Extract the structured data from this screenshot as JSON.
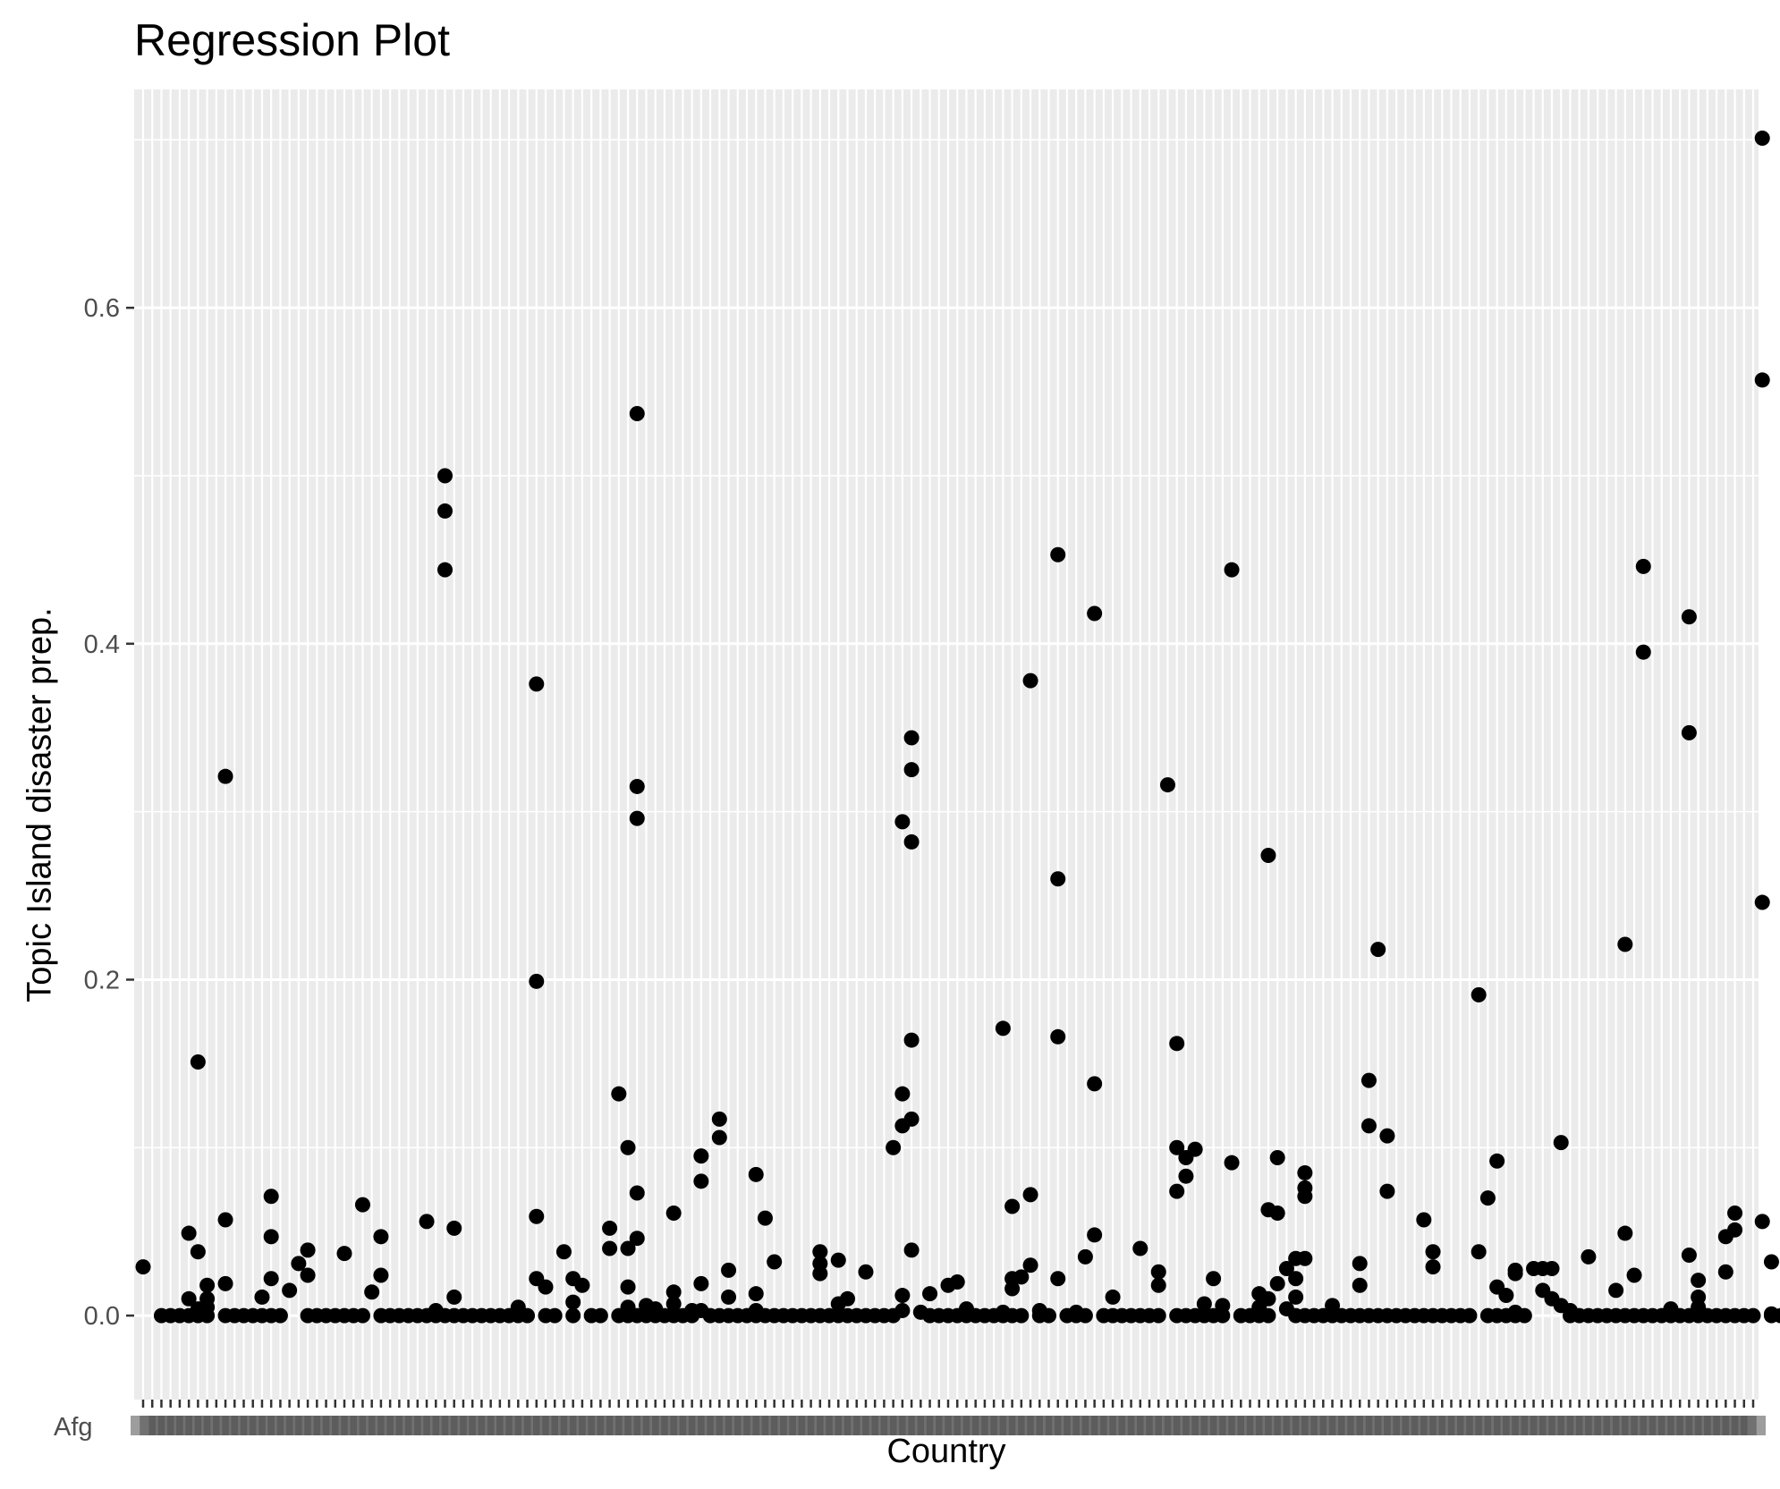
{
  "chart_data": {
    "type": "scatter",
    "title": "Regression Plot",
    "xlabel": "Country",
    "ylabel": "Topic Island disaster prep.",
    "x_axis": {
      "kind": "categorical",
      "first_label_visible": "Afg",
      "n_categories": 177,
      "tick_labels_overlapping": true
    },
    "y_ticks": [
      0.0,
      0.2,
      0.4,
      0.6
    ],
    "y_tick_labels": [
      "0.0",
      "0.2",
      "0.4",
      "0.6"
    ],
    "ylim": [
      -0.05,
      0.73
    ],
    "grid": true,
    "legend": "none",
    "colors": {
      "panel": "#ebebeb",
      "grid": "#ffffff",
      "points": "#000000",
      "text": "#4d4d4d"
    },
    "points": [
      [
        0,
        0.029
      ],
      [
        2,
        0
      ],
      [
        3,
        0
      ],
      [
        4,
        0
      ],
      [
        5,
        0
      ],
      [
        6,
        0
      ],
      [
        5,
        0.049
      ],
      [
        5,
        0.01
      ],
      [
        6,
        0.004
      ],
      [
        6,
        0.038
      ],
      [
        6,
        0.151
      ],
      [
        7,
        0.018
      ],
      [
        7,
        0.01
      ],
      [
        7,
        0.005
      ],
      [
        7,
        0
      ],
      [
        9,
        0.321
      ],
      [
        9,
        0.057
      ],
      [
        9,
        0.019
      ],
      [
        9,
        0
      ],
      [
        10,
        0
      ],
      [
        11,
        0
      ],
      [
        12,
        0
      ],
      [
        13,
        0
      ],
      [
        14,
        0
      ],
      [
        13,
        0.011
      ],
      [
        14,
        0.071
      ],
      [
        14,
        0.047
      ],
      [
        14,
        0.022
      ],
      [
        15,
        0
      ],
      [
        16,
        0.015
      ],
      [
        17,
        0.031
      ],
      [
        18,
        0.039
      ],
      [
        18,
        0.024
      ],
      [
        18,
        0
      ],
      [
        19,
        0
      ],
      [
        20,
        0
      ],
      [
        21,
        0
      ],
      [
        22,
        0.037
      ],
      [
        22,
        0
      ],
      [
        23,
        0
      ],
      [
        24,
        0
      ],
      [
        24,
        0.066
      ],
      [
        25,
        0.014
      ],
      [
        26,
        0.047
      ],
      [
        26,
        0.024
      ],
      [
        26,
        0
      ],
      [
        27,
        0
      ],
      [
        28,
        0
      ],
      [
        29,
        0
      ],
      [
        30,
        0
      ],
      [
        31,
        0
      ],
      [
        31,
        0.056
      ],
      [
        32,
        0.003
      ],
      [
        32,
        0
      ],
      [
        33,
        0.5
      ],
      [
        33,
        0.479
      ],
      [
        33,
        0.444
      ],
      [
        33,
        0
      ],
      [
        34,
        0.052
      ],
      [
        34,
        0.011
      ],
      [
        34,
        0
      ],
      [
        35,
        0
      ],
      [
        36,
        0
      ],
      [
        37,
        0
      ],
      [
        38,
        0
      ],
      [
        39,
        0
      ],
      [
        40,
        0
      ],
      [
        41,
        0
      ],
      [
        42,
        0
      ],
      [
        41,
        0.005
      ],
      [
        43,
        0.376
      ],
      [
        43,
        0.199
      ],
      [
        43,
        0.059
      ],
      [
        43,
        0.022
      ],
      [
        44,
        0.017
      ],
      [
        44,
        0
      ],
      [
        45,
        0
      ],
      [
        46,
        0.038
      ],
      [
        47,
        0.022
      ],
      [
        47,
        0.008
      ],
      [
        47,
        0
      ],
      [
        48,
        0.018
      ],
      [
        49,
        0
      ],
      [
        50,
        0
      ],
      [
        51,
        0.052
      ],
      [
        51,
        0.04
      ],
      [
        52,
        0.132
      ],
      [
        52,
        0
      ],
      [
        53,
        0.1
      ],
      [
        53,
        0.04
      ],
      [
        53,
        0.017
      ],
      [
        53,
        0.005
      ],
      [
        53,
        0
      ],
      [
        54,
        0.537
      ],
      [
        54,
        0.315
      ],
      [
        54,
        0.296
      ],
      [
        54,
        0.073
      ],
      [
        54,
        0.046
      ],
      [
        54,
        0
      ],
      [
        55,
        0.006
      ],
      [
        55,
        0
      ],
      [
        56,
        0.004
      ],
      [
        56,
        0
      ],
      [
        57,
        0
      ],
      [
        58,
        0.061
      ],
      [
        58,
        0.014
      ],
      [
        58,
        0.007
      ],
      [
        58,
        0
      ],
      [
        59,
        0
      ],
      [
        60,
        0.003
      ],
      [
        60,
        0
      ],
      [
        61,
        0.095
      ],
      [
        61,
        0.08
      ],
      [
        61,
        0.019
      ],
      [
        61,
        0.003
      ],
      [
        62,
        0
      ],
      [
        63,
        0.117
      ],
      [
        63,
        0.106
      ],
      [
        63,
        0
      ],
      [
        64,
        0.027
      ],
      [
        64,
        0.011
      ],
      [
        64,
        0
      ],
      [
        65,
        0
      ],
      [
        66,
        0
      ],
      [
        67,
        0.084
      ],
      [
        67,
        0.013
      ],
      [
        67,
        0.003
      ],
      [
        67,
        0
      ],
      [
        68,
        0.058
      ],
      [
        68,
        0
      ],
      [
        69,
        0.032
      ],
      [
        69,
        0
      ],
      [
        70,
        0
      ],
      [
        71,
        0
      ],
      [
        72,
        0
      ],
      [
        73,
        0
      ],
      [
        74,
        0.038
      ],
      [
        74,
        0.031
      ],
      [
        74,
        0.025
      ],
      [
        74,
        0
      ],
      [
        75,
        0
      ],
      [
        76,
        0.033
      ],
      [
        76,
        0.007
      ],
      [
        76,
        0
      ],
      [
        77,
        0.01
      ],
      [
        77,
        0
      ],
      [
        78,
        0
      ],
      [
        79,
        0.026
      ],
      [
        79,
        0
      ],
      [
        80,
        0
      ],
      [
        81,
        0
      ],
      [
        82,
        0.1
      ],
      [
        82,
        0
      ],
      [
        83,
        0.294
      ],
      [
        83,
        0.132
      ],
      [
        83,
        0.113
      ],
      [
        83,
        0.012
      ],
      [
        83,
        0.003
      ],
      [
        84,
        0.344
      ],
      [
        84,
        0.325
      ],
      [
        84,
        0.282
      ],
      [
        84,
        0.164
      ],
      [
        84,
        0.117
      ],
      [
        84,
        0.039
      ],
      [
        85,
        0.002
      ],
      [
        86,
        0.013
      ],
      [
        86,
        0
      ],
      [
        87,
        0
      ],
      [
        88,
        0.018
      ],
      [
        88,
        0
      ],
      [
        89,
        0.02
      ],
      [
        89,
        0
      ],
      [
        90,
        0.004
      ],
      [
        90,
        0
      ],
      [
        91,
        0
      ],
      [
        92,
        0
      ],
      [
        93,
        0
      ],
      [
        94,
        0.171
      ],
      [
        94,
        0.002
      ],
      [
        94,
        0
      ],
      [
        95,
        0.065
      ],
      [
        95,
        0.022
      ],
      [
        95,
        0.016
      ],
      [
        95,
        0
      ],
      [
        96,
        0.023
      ],
      [
        96,
        0
      ],
      [
        97,
        0.378
      ],
      [
        97,
        0.072
      ],
      [
        97,
        0.03
      ],
      [
        98,
        0.003
      ],
      [
        98,
        0
      ],
      [
        99,
        0
      ],
      [
        100,
        0.453
      ],
      [
        100,
        0.26
      ],
      [
        100,
        0.166
      ],
      [
        100,
        0.022
      ],
      [
        101,
        0
      ],
      [
        102,
        0.002
      ],
      [
        102,
        0
      ],
      [
        103,
        0
      ],
      [
        103,
        0.035
      ],
      [
        104,
        0.418
      ],
      [
        104,
        0.138
      ],
      [
        104,
        0.048
      ],
      [
        105,
        0
      ],
      [
        106,
        0.011
      ],
      [
        106,
        0
      ],
      [
        107,
        0
      ],
      [
        108,
        0
      ],
      [
        109,
        0
      ],
      [
        109,
        0.04
      ],
      [
        110,
        0
      ],
      [
        111,
        0
      ],
      [
        111,
        0.026
      ],
      [
        111,
        0.018
      ],
      [
        112,
        0.316
      ],
      [
        113,
        0.162
      ],
      [
        113,
        0.1
      ],
      [
        113,
        0.074
      ],
      [
        113,
        0
      ],
      [
        114,
        0.094
      ],
      [
        114,
        0.083
      ],
      [
        114,
        0
      ],
      [
        115,
        0.099
      ],
      [
        115,
        0
      ],
      [
        116,
        0.007
      ],
      [
        116,
        0
      ],
      [
        117,
        0.022
      ],
      [
        117,
        0
      ],
      [
        118,
        0.006
      ],
      [
        118,
        0
      ],
      [
        119,
        0.444
      ],
      [
        119,
        0.091
      ],
      [
        120,
        0
      ],
      [
        121,
        0
      ],
      [
        122,
        0.013
      ],
      [
        122,
        0.005
      ],
      [
        122,
        0
      ],
      [
        123,
        0.274
      ],
      [
        123,
        0.063
      ],
      [
        123,
        0.01
      ],
      [
        123,
        0
      ],
      [
        124,
        0.094
      ],
      [
        124,
        0.061
      ],
      [
        124,
        0.019
      ],
      [
        125,
        0.028
      ],
      [
        125,
        0.004
      ],
      [
        126,
        0.034
      ],
      [
        126,
        0.022
      ],
      [
        126,
        0.011
      ],
      [
        126,
        0
      ],
      [
        127,
        0.085
      ],
      [
        127,
        0.076
      ],
      [
        127,
        0.071
      ],
      [
        127,
        0.034
      ],
      [
        127,
        0
      ],
      [
        128,
        0
      ],
      [
        129,
        0
      ],
      [
        130,
        0.006
      ],
      [
        130,
        0
      ],
      [
        131,
        0
      ],
      [
        132,
        0
      ],
      [
        133,
        0.031
      ],
      [
        133,
        0.018
      ],
      [
        133,
        0
      ],
      [
        134,
        0.14
      ],
      [
        134,
        0.113
      ],
      [
        134,
        0
      ],
      [
        135,
        0.218
      ],
      [
        135,
        0
      ],
      [
        136,
        0.107
      ],
      [
        136,
        0.074
      ],
      [
        136,
        0
      ],
      [
        137,
        0
      ],
      [
        138,
        0
      ],
      [
        139,
        0
      ],
      [
        140,
        0.057
      ],
      [
        140,
        0
      ],
      [
        141,
        0.038
      ],
      [
        141,
        0.029
      ],
      [
        141,
        0
      ],
      [
        142,
        0
      ],
      [
        143,
        0
      ],
      [
        144,
        0
      ],
      [
        145,
        0
      ],
      [
        146,
        0.191
      ],
      [
        146,
        0.038
      ],
      [
        147,
        0.07
      ],
      [
        147,
        0
      ],
      [
        148,
        0.092
      ],
      [
        148,
        0.017
      ],
      [
        148,
        0
      ],
      [
        149,
        0.012
      ],
      [
        149,
        0
      ],
      [
        150,
        0.027
      ],
      [
        150,
        0.025
      ],
      [
        150,
        0.002
      ],
      [
        150,
        0
      ],
      [
        151,
        0
      ],
      [
        152,
        0.028
      ],
      [
        153,
        0.028
      ],
      [
        153,
        0.015
      ],
      [
        154,
        0.028
      ],
      [
        154,
        0.01
      ],
      [
        155,
        0.103
      ],
      [
        155,
        0.006
      ],
      [
        156,
        0.003
      ],
      [
        156,
        0
      ],
      [
        157,
        0
      ],
      [
        158,
        0.035
      ],
      [
        158,
        0
      ],
      [
        159,
        0
      ],
      [
        160,
        0
      ],
      [
        161,
        0.015
      ],
      [
        161,
        0
      ],
      [
        162,
        0.221
      ],
      [
        162,
        0.049
      ],
      [
        162,
        0
      ],
      [
        163,
        0.024
      ],
      [
        163,
        0
      ],
      [
        164,
        0.446
      ],
      [
        164,
        0.395
      ],
      [
        164,
        0
      ],
      [
        165,
        0
      ],
      [
        166,
        0
      ],
      [
        167,
        0.004
      ],
      [
        167,
        0
      ],
      [
        168,
        0
      ],
      [
        169,
        0.416
      ],
      [
        169,
        0.347
      ],
      [
        169,
        0.036
      ],
      [
        169,
        0
      ],
      [
        170,
        0.021
      ],
      [
        170,
        0.011
      ],
      [
        170,
        0.005
      ],
      [
        170,
        0
      ],
      [
        171,
        0
      ],
      [
        172,
        0
      ],
      [
        173,
        0.047
      ],
      [
        173,
        0.026
      ],
      [
        173,
        0
      ],
      [
        174,
        0.061
      ],
      [
        174,
        0.051
      ],
      [
        174,
        0
      ],
      [
        175,
        0
      ],
      [
        176,
        0
      ],
      [
        177,
        0.701
      ],
      [
        177,
        0.557
      ],
      [
        177,
        0.246
      ],
      [
        177,
        0.056
      ],
      [
        178,
        0.032
      ],
      [
        178,
        0.001
      ],
      [
        178,
        0
      ],
      [
        179,
        0
      ],
      [
        180,
        0.004
      ],
      [
        180,
        0.037
      ],
      [
        181,
        0.032
      ],
      [
        181,
        0.023
      ]
    ]
  }
}
